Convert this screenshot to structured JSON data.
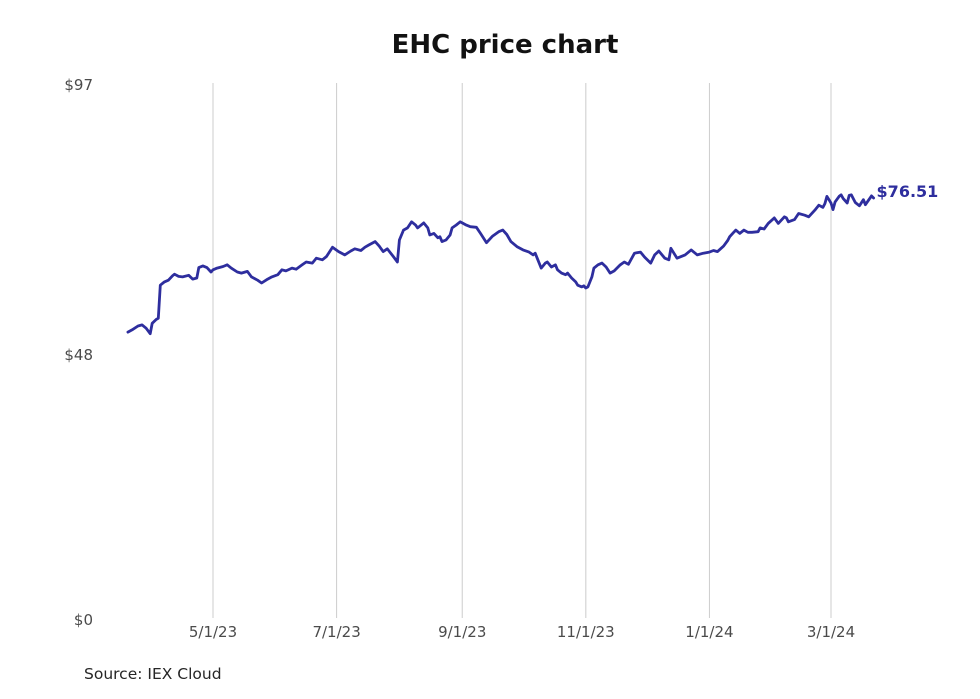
{
  "source_note": "Source: IEX Cloud",
  "colors": {
    "line": "#2e2e9e",
    "last_price_label": "#2e2e9e",
    "grid": "#cccccc",
    "tick_text": "#4b4b4b",
    "title_text": "#121212",
    "source_text": "#262626",
    "background": "#ffffff"
  },
  "chart_data": {
    "type": "line",
    "title": "EHC price chart",
    "xlabel": "",
    "ylabel": "",
    "ylim": [
      0,
      97
    ],
    "grid": "vertical-only",
    "legend": "none",
    "y_ticks": [
      {
        "label": "$97",
        "value": 97
      },
      {
        "label": "$48",
        "value": 48
      },
      {
        "label": "$0",
        "value": 0
      }
    ],
    "x_ticks": [
      {
        "label": "5/1/23",
        "date": "2023-05-01"
      },
      {
        "label": "7/1/23",
        "date": "2023-07-01"
      },
      {
        "label": "9/1/23",
        "date": "2023-09-01"
      },
      {
        "label": "11/1/23",
        "date": "2023-11-01"
      },
      {
        "label": "1/1/24",
        "date": "2024-01-01"
      },
      {
        "label": "3/1/24",
        "date": "2024-03-01"
      }
    ],
    "series": [
      {
        "name": "EHC",
        "end_label": "$76.51",
        "last_value": 76.51,
        "points": [
          [
            "2023-03-20",
            52.2
          ],
          [
            "2023-03-22",
            52.6
          ],
          [
            "2023-03-25",
            53.3
          ],
          [
            "2023-03-27",
            53.5
          ],
          [
            "2023-03-29",
            52.9
          ],
          [
            "2023-03-31",
            51.9
          ],
          [
            "2023-04-01",
            53.8
          ],
          [
            "2023-04-03",
            54.5
          ],
          [
            "2023-04-04",
            54.7
          ],
          [
            "2023-04-05",
            60.7
          ],
          [
            "2023-04-07",
            61.3
          ],
          [
            "2023-04-09",
            61.6
          ],
          [
            "2023-04-11",
            62.4
          ],
          [
            "2023-04-12",
            62.7
          ],
          [
            "2023-04-14",
            62.3
          ],
          [
            "2023-04-16",
            62.2
          ],
          [
            "2023-04-19",
            62.5
          ],
          [
            "2023-04-21",
            61.8
          ],
          [
            "2023-04-23",
            62.0
          ],
          [
            "2023-04-24",
            63.9
          ],
          [
            "2023-04-26",
            64.2
          ],
          [
            "2023-04-28",
            63.9
          ],
          [
            "2023-04-30",
            63.1
          ],
          [
            "2023-05-01",
            63.5
          ],
          [
            "2023-05-03",
            63.8
          ],
          [
            "2023-05-06",
            64.1
          ],
          [
            "2023-05-08",
            64.4
          ],
          [
            "2023-05-10",
            63.8
          ],
          [
            "2023-05-13",
            63.1
          ],
          [
            "2023-05-15",
            62.9
          ],
          [
            "2023-05-18",
            63.2
          ],
          [
            "2023-05-20",
            62.2
          ],
          [
            "2023-05-23",
            61.6
          ],
          [
            "2023-05-25",
            61.1
          ],
          [
            "2023-05-28",
            61.8
          ],
          [
            "2023-05-30",
            62.2
          ],
          [
            "2023-06-02",
            62.6
          ],
          [
            "2023-06-04",
            63.5
          ],
          [
            "2023-06-06",
            63.3
          ],
          [
            "2023-06-09",
            63.8
          ],
          [
            "2023-06-11",
            63.6
          ],
          [
            "2023-06-14",
            64.4
          ],
          [
            "2023-06-16",
            64.9
          ],
          [
            "2023-06-19",
            64.7
          ],
          [
            "2023-06-21",
            65.6
          ],
          [
            "2023-06-24",
            65.3
          ],
          [
            "2023-06-26",
            65.9
          ],
          [
            "2023-06-29",
            67.6
          ],
          [
            "2023-07-02",
            66.8
          ],
          [
            "2023-07-05",
            66.2
          ],
          [
            "2023-07-08",
            66.9
          ],
          [
            "2023-07-10",
            67.3
          ],
          [
            "2023-07-13",
            67.0
          ],
          [
            "2023-07-15",
            67.6
          ],
          [
            "2023-07-17",
            68.0
          ],
          [
            "2023-07-20",
            68.6
          ],
          [
            "2023-07-22",
            67.8
          ],
          [
            "2023-07-24",
            66.8
          ],
          [
            "2023-07-26",
            67.3
          ],
          [
            "2023-07-29",
            65.9
          ],
          [
            "2023-07-31",
            64.9
          ],
          [
            "2023-08-01",
            68.9
          ],
          [
            "2023-08-03",
            70.7
          ],
          [
            "2023-08-05",
            71.1
          ],
          [
            "2023-08-07",
            72.2
          ],
          [
            "2023-08-09",
            71.6
          ],
          [
            "2023-08-10",
            71.1
          ],
          [
            "2023-08-13",
            72.0
          ],
          [
            "2023-08-15",
            71.1
          ],
          [
            "2023-08-16",
            69.8
          ],
          [
            "2023-08-18",
            70.1
          ],
          [
            "2023-08-20",
            69.3
          ],
          [
            "2023-08-21",
            69.5
          ],
          [
            "2023-08-22",
            68.6
          ],
          [
            "2023-08-24",
            68.9
          ],
          [
            "2023-08-26",
            69.8
          ],
          [
            "2023-08-27",
            71.1
          ],
          [
            "2023-08-29",
            71.6
          ],
          [
            "2023-08-31",
            72.2
          ],
          [
            "2023-09-01",
            72.0
          ],
          [
            "2023-09-03",
            71.6
          ],
          [
            "2023-09-05",
            71.3
          ],
          [
            "2023-09-08",
            71.2
          ],
          [
            "2023-09-10",
            70.1
          ],
          [
            "2023-09-13",
            68.4
          ],
          [
            "2023-09-16",
            69.6
          ],
          [
            "2023-09-19",
            70.4
          ],
          [
            "2023-09-21",
            70.7
          ],
          [
            "2023-09-23",
            69.9
          ],
          [
            "2023-09-25",
            68.6
          ],
          [
            "2023-09-28",
            67.7
          ],
          [
            "2023-10-01",
            67.1
          ],
          [
            "2023-10-04",
            66.7
          ],
          [
            "2023-10-06",
            66.2
          ],
          [
            "2023-10-07",
            66.5
          ],
          [
            "2023-10-08",
            65.6
          ],
          [
            "2023-10-10",
            63.8
          ],
          [
            "2023-10-12",
            64.7
          ],
          [
            "2023-10-13",
            64.9
          ],
          [
            "2023-10-15",
            64.0
          ],
          [
            "2023-10-17",
            64.4
          ],
          [
            "2023-10-18",
            63.5
          ],
          [
            "2023-10-20",
            62.9
          ],
          [
            "2023-10-22",
            62.6
          ],
          [
            "2023-10-23",
            62.9
          ],
          [
            "2023-10-25",
            62.0
          ],
          [
            "2023-10-27",
            61.3
          ],
          [
            "2023-10-28",
            60.7
          ],
          [
            "2023-10-30",
            60.4
          ],
          [
            "2023-10-31",
            60.6
          ],
          [
            "2023-11-01",
            60.2
          ],
          [
            "2023-11-02",
            60.4
          ],
          [
            "2023-11-04",
            62.2
          ],
          [
            "2023-11-05",
            63.8
          ],
          [
            "2023-11-07",
            64.4
          ],
          [
            "2023-11-09",
            64.7
          ],
          [
            "2023-11-11",
            64.0
          ],
          [
            "2023-11-13",
            62.9
          ],
          [
            "2023-11-15",
            63.3
          ],
          [
            "2023-11-18",
            64.4
          ],
          [
            "2023-11-20",
            64.9
          ],
          [
            "2023-11-22",
            64.5
          ],
          [
            "2023-11-25",
            66.5
          ],
          [
            "2023-11-28",
            66.7
          ],
          [
            "2023-11-30",
            65.8
          ],
          [
            "2023-12-03",
            64.7
          ],
          [
            "2023-12-05",
            66.2
          ],
          [
            "2023-12-07",
            66.9
          ],
          [
            "2023-12-10",
            65.6
          ],
          [
            "2023-12-12",
            65.3
          ],
          [
            "2023-12-13",
            67.4
          ],
          [
            "2023-12-16",
            65.6
          ],
          [
            "2023-12-20",
            66.2
          ],
          [
            "2023-12-23",
            67.1
          ],
          [
            "2023-12-26",
            66.2
          ],
          [
            "2023-12-29",
            66.5
          ],
          [
            "2024-01-01",
            66.7
          ],
          [
            "2024-01-03",
            67.0
          ],
          [
            "2024-01-05",
            66.8
          ],
          [
            "2024-01-08",
            67.8
          ],
          [
            "2024-01-10",
            68.8
          ],
          [
            "2024-01-11",
            69.5
          ],
          [
            "2024-01-13",
            70.3
          ],
          [
            "2024-01-14",
            70.7
          ],
          [
            "2024-01-16",
            70.1
          ],
          [
            "2024-01-18",
            70.7
          ],
          [
            "2024-01-20",
            70.3
          ],
          [
            "2024-01-22",
            70.3
          ],
          [
            "2024-01-25",
            70.4
          ],
          [
            "2024-01-26",
            71.1
          ],
          [
            "2024-01-28",
            70.9
          ],
          [
            "2024-01-30",
            71.9
          ],
          [
            "2024-02-02",
            72.9
          ],
          [
            "2024-02-04",
            71.9
          ],
          [
            "2024-02-07",
            73.1
          ],
          [
            "2024-02-08",
            72.9
          ],
          [
            "2024-02-09",
            72.2
          ],
          [
            "2024-02-12",
            72.6
          ],
          [
            "2024-02-14",
            73.7
          ],
          [
            "2024-02-17",
            73.4
          ],
          [
            "2024-02-19",
            73.1
          ],
          [
            "2024-02-22",
            74.3
          ],
          [
            "2024-02-24",
            75.2
          ],
          [
            "2024-02-26",
            74.8
          ],
          [
            "2024-02-27",
            75.5
          ],
          [
            "2024-02-28",
            76.8
          ],
          [
            "2024-02-29",
            76.2
          ],
          [
            "2024-03-01",
            75.6
          ],
          [
            "2024-03-02",
            74.4
          ],
          [
            "2024-03-03",
            75.8
          ],
          [
            "2024-03-05",
            76.8
          ],
          [
            "2024-03-06",
            77.1
          ],
          [
            "2024-03-07",
            76.4
          ],
          [
            "2024-03-09",
            75.6
          ],
          [
            "2024-03-10",
            77.0
          ],
          [
            "2024-03-11",
            77.1
          ],
          [
            "2024-03-13",
            75.7
          ],
          [
            "2024-03-15",
            75.1
          ],
          [
            "2024-03-17",
            76.2
          ],
          [
            "2024-03-18",
            75.3
          ],
          [
            "2024-03-21",
            76.9
          ],
          [
            "2024-03-22",
            76.51
          ]
        ]
      }
    ]
  }
}
